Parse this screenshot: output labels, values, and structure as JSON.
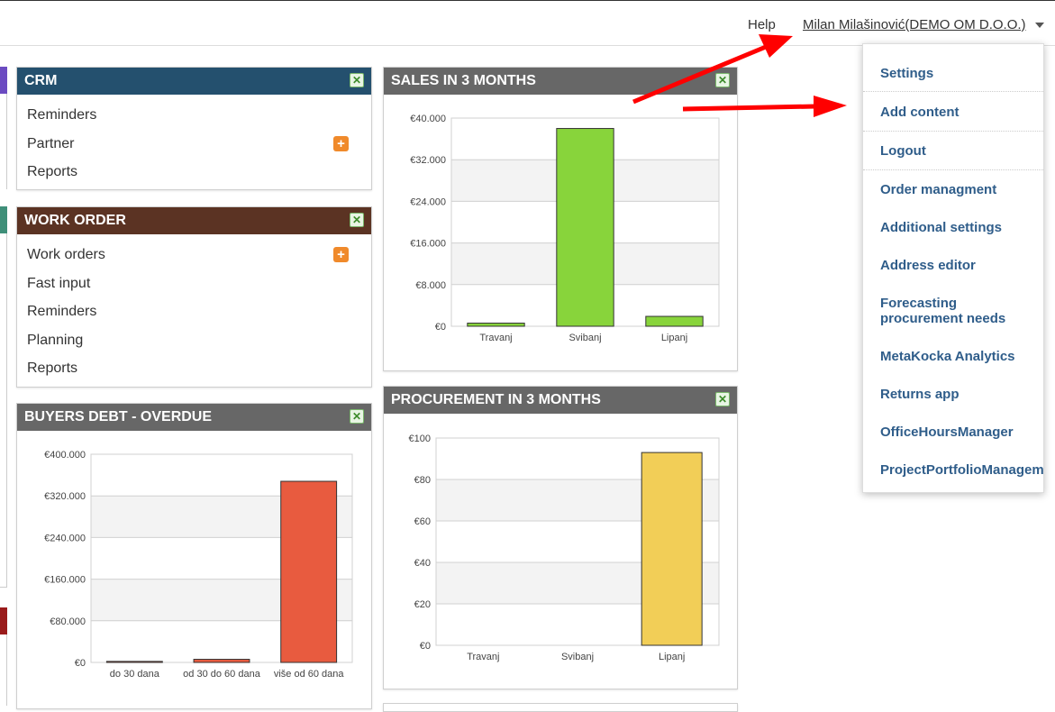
{
  "topbar": {
    "help_label": "Help",
    "user_label": "Milan Milašinović(DEMO OM D.O.O.)"
  },
  "colors": {
    "crm_header": "#24506e",
    "workorder_header": "#5b3323",
    "gray_header": "#676767",
    "sales_bar": "#88d43b",
    "debt_bar": "#e85b3f",
    "procurement_bar": "#f2ce57",
    "menu_link": "#2f5d8a",
    "annotation_arrow": "#ff0000"
  },
  "crm": {
    "title": "CRM",
    "items": [
      "Reminders",
      "Partner",
      "Reports"
    ]
  },
  "work_order": {
    "title": "WORK ORDER",
    "items": [
      "Work orders",
      "Fast input",
      "Reminders",
      "Planning",
      "Reports"
    ]
  },
  "buyers_debt": {
    "title": "BUYERS DEBT - OVERDUE"
  },
  "sales": {
    "title": "SALES IN 3 MONTHS"
  },
  "procurement": {
    "title": "PROCUREMENT IN 3 MONTHS"
  },
  "menu": {
    "items": [
      "Settings",
      "Add content",
      "Logout",
      "Order managment",
      "Additional settings",
      "Address editor",
      "Forecasting procurement needs",
      "MetaKocka Analytics",
      "Returns app",
      "OfficeHoursManager",
      "ProjectPortfolioManagement"
    ]
  },
  "chart_data": [
    {
      "type": "bar",
      "title": "SALES IN 3 MONTHS",
      "categories": [
        "Travanj",
        "Svibanj",
        "Lipanj"
      ],
      "values": [
        600,
        38000,
        1900
      ],
      "ylim": [
        0,
        40000
      ],
      "yticks": [
        "€0",
        "€8.000",
        "€16.000",
        "€24.000",
        "€32.000",
        "€40.000"
      ],
      "grid": true
    },
    {
      "type": "bar",
      "title": "BUYERS DEBT - OVERDUE",
      "categories": [
        "do 30 dana",
        "od 30 do 60 dana",
        "više od 60 dana"
      ],
      "values": [
        2000,
        6000,
        348000
      ],
      "ylim": [
        0,
        400000
      ],
      "yticks": [
        "€0",
        "€80.000",
        "€160.000",
        "€240.000",
        "€320.000",
        "€400.000"
      ],
      "grid": true
    },
    {
      "type": "bar",
      "title": "PROCUREMENT IN 3 MONTHS",
      "categories": [
        "Travanj",
        "Svibanj",
        "Lipanj"
      ],
      "values": [
        0,
        0,
        93
      ],
      "ylim": [
        0,
        100
      ],
      "yticks": [
        "€0",
        "€20",
        "€40",
        "€60",
        "€80",
        "€100"
      ],
      "grid": true
    }
  ]
}
